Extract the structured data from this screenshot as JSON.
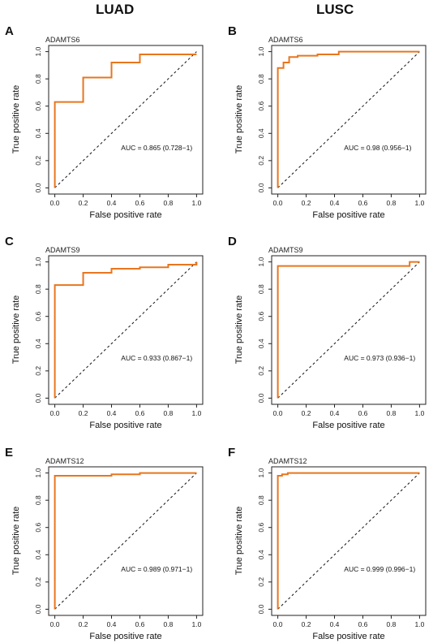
{
  "columns": {
    "left": "LUAD",
    "right": "LUSC"
  },
  "panels": [
    {
      "letter": "A",
      "gene": "ADAMTS6",
      "xlabel": "False positive rate",
      "ylabel": "True positive rate",
      "auc": "AUC = 0.865 (0.728−1)",
      "color": "#E8761E"
    },
    {
      "letter": "B",
      "gene": "ADAMTS6",
      "xlabel": "False positive rate",
      "ylabel": "True positive rate",
      "auc": "AUC = 0.98 (0.956−1)",
      "color": "#E8761E"
    },
    {
      "letter": "C",
      "gene": "ADAMTS9",
      "xlabel": "False positive rate",
      "ylabel": "True positive rate",
      "auc": "AUC = 0.933 (0.867−1)",
      "color": "#E8761E"
    },
    {
      "letter": "D",
      "gene": "ADAMTS9",
      "xlabel": "False positive rate",
      "ylabel": "True positive rate",
      "auc": "AUC = 0.973 (0.936−1)",
      "color": "#E8761E"
    },
    {
      "letter": "E",
      "gene": "ADAMTS12",
      "xlabel": "False positive rate",
      "ylabel": "True positive rate",
      "auc": "AUC = 0.989 (0.971−1)",
      "color": "#E8761E"
    },
    {
      "letter": "F",
      "gene": "ADAMTS12",
      "xlabel": "False positive rate",
      "ylabel": "True positive rate",
      "auc": "AUC = 0.999 (0.996−1)",
      "color": "#E8761E"
    }
  ],
  "chart_data": [
    {
      "type": "line",
      "title": "ADAMTS6",
      "xlabel": "False positive rate",
      "ylabel": "True positive rate",
      "xlim": [
        0,
        1
      ],
      "ylim": [
        0,
        1
      ],
      "x_ticks": [
        0.0,
        0.2,
        0.4,
        0.6,
        0.8,
        1.0
      ],
      "y_ticks": [
        0.0,
        0.2,
        0.4,
        0.6,
        0.8,
        1.0
      ],
      "series": [
        {
          "x": [
            0,
            0,
            0.2,
            0.2,
            0.4,
            0.4,
            0.6,
            0.6,
            1.0
          ],
          "y": [
            0,
            0.63,
            0.63,
            0.81,
            0.81,
            0.92,
            0.92,
            0.98,
            0.98
          ]
        }
      ],
      "diagonal": true,
      "annotation": "AUC = 0.865 (0.728−1)"
    },
    {
      "type": "line",
      "title": "ADAMTS6",
      "xlabel": "False positive rate",
      "ylabel": "True positive rate",
      "xlim": [
        0,
        1
      ],
      "ylim": [
        0,
        1
      ],
      "x_ticks": [
        0.0,
        0.2,
        0.4,
        0.6,
        0.8,
        1.0
      ],
      "y_ticks": [
        0.0,
        0.2,
        0.4,
        0.6,
        0.8,
        1.0
      ],
      "series": [
        {
          "x": [
            0,
            0,
            0.04,
            0.04,
            0.08,
            0.08,
            0.14,
            0.14,
            0.28,
            0.28,
            0.43,
            0.43,
            1.0
          ],
          "y": [
            0,
            0.88,
            0.88,
            0.92,
            0.92,
            0.96,
            0.96,
            0.97,
            0.97,
            0.98,
            0.98,
            1.0,
            1.0
          ]
        }
      ],
      "diagonal": true,
      "annotation": "AUC = 0.98 (0.956−1)"
    },
    {
      "type": "line",
      "title": "ADAMTS9",
      "xlabel": "False positive rate",
      "ylabel": "True positive rate",
      "xlim": [
        0,
        1
      ],
      "ylim": [
        0,
        1
      ],
      "x_ticks": [
        0.0,
        0.2,
        0.4,
        0.6,
        0.8,
        1.0
      ],
      "y_ticks": [
        0.0,
        0.2,
        0.4,
        0.6,
        0.8,
        1.0
      ],
      "series": [
        {
          "x": [
            0,
            0,
            0.2,
            0.2,
            0.4,
            0.4,
            0.6,
            0.6,
            0.8,
            0.8,
            1.0,
            1.0
          ],
          "y": [
            0,
            0.83,
            0.83,
            0.92,
            0.92,
            0.95,
            0.95,
            0.96,
            0.96,
            0.98,
            0.98,
            1.0
          ]
        }
      ],
      "diagonal": true,
      "annotation": "AUC = 0.933 (0.867−1)"
    },
    {
      "type": "line",
      "title": "ADAMTS9",
      "xlabel": "False positive rate",
      "ylabel": "True positive rate",
      "xlim": [
        0,
        1
      ],
      "ylim": [
        0,
        1
      ],
      "x_ticks": [
        0.0,
        0.2,
        0.4,
        0.6,
        0.8,
        1.0
      ],
      "y_ticks": [
        0.0,
        0.2,
        0.4,
        0.6,
        0.8,
        1.0
      ],
      "series": [
        {
          "x": [
            0,
            0,
            0.93,
            0.93,
            1.0,
            1.0
          ],
          "y": [
            0,
            0.97,
            0.97,
            1.0,
            1.0,
            1.0
          ]
        }
      ],
      "diagonal": true,
      "annotation": "AUC = 0.973 (0.936−1)"
    },
    {
      "type": "line",
      "title": "ADAMTS12",
      "xlabel": "False positive rate",
      "ylabel": "True positive rate",
      "xlim": [
        0,
        1
      ],
      "ylim": [
        0,
        1
      ],
      "x_ticks": [
        0.0,
        0.2,
        0.4,
        0.6,
        0.8,
        1.0
      ],
      "y_ticks": [
        0.0,
        0.2,
        0.4,
        0.6,
        0.8,
        1.0
      ],
      "series": [
        {
          "x": [
            0,
            0,
            0.4,
            0.4,
            0.6,
            0.6,
            1.0
          ],
          "y": [
            0,
            0.98,
            0.98,
            0.99,
            0.99,
            1.0,
            1.0
          ]
        }
      ],
      "diagonal": true,
      "annotation": "AUC = 0.989 (0.971−1)"
    },
    {
      "type": "line",
      "title": "ADAMTS12",
      "xlabel": "False positive rate",
      "ylabel": "True positive rate",
      "xlim": [
        0,
        1
      ],
      "ylim": [
        0,
        1
      ],
      "x_ticks": [
        0.0,
        0.2,
        0.4,
        0.6,
        0.8,
        1.0
      ],
      "y_ticks": [
        0.0,
        0.2,
        0.4,
        0.6,
        0.8,
        1.0
      ],
      "series": [
        {
          "x": [
            0,
            0,
            0.03,
            0.03,
            0.07,
            0.07,
            1.0
          ],
          "y": [
            0,
            0.98,
            0.98,
            0.99,
            0.99,
            1.0,
            1.0
          ]
        }
      ],
      "diagonal": true,
      "annotation": "AUC = 0.999 (0.996−1)"
    }
  ]
}
